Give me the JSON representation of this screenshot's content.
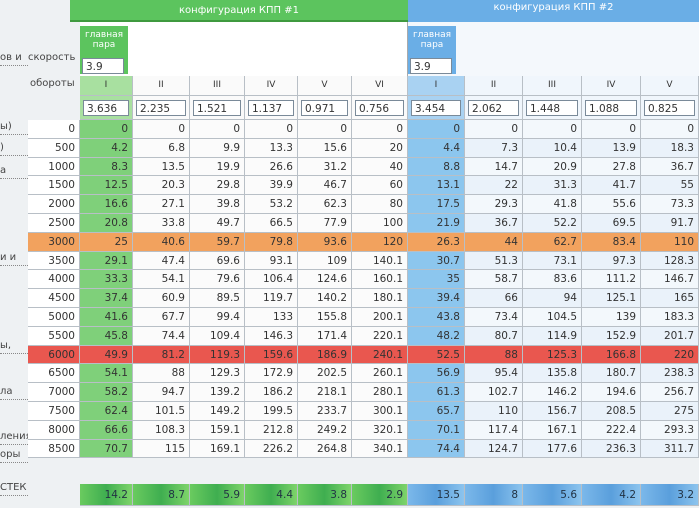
{
  "speed_label": "скорость",
  "rpm_label": "обороты",
  "left_labels": [
    "ов и",
    "ы)",
    ")",
    "а",
    "и и",
    "ы,",
    "ла",
    "ления",
    "оры",
    "СТЕК"
  ],
  "kpp1": {
    "title": "конфигурация КПП #1",
    "main_pair_label": "главная пара",
    "main_pair": 3.9,
    "gears": [
      "I",
      "II",
      "III",
      "IV",
      "V",
      "VI"
    ],
    "ratios": [
      3.636,
      2.235,
      1.521,
      1.137,
      0.971,
      0.756
    ]
  },
  "kpp2": {
    "title": "конфигурация КПП #2",
    "main_pair_label": "главная пара",
    "main_pair": 3.9,
    "gears": [
      "I",
      "II",
      "III",
      "IV",
      "V"
    ],
    "ratios": [
      3.454,
      2.062,
      1.448,
      1.088,
      0.825
    ]
  },
  "rows": [
    {
      "rpm": 0,
      "kpp1": [
        0,
        0,
        0,
        0,
        0,
        0
      ],
      "kpp2": [
        0,
        0,
        0,
        0,
        0
      ]
    },
    {
      "rpm": 500,
      "kpp1": [
        4.2,
        6.8,
        9.9,
        13.3,
        15.6,
        20
      ],
      "kpp2": [
        4.4,
        7.3,
        10.4,
        13.9,
        18.3
      ]
    },
    {
      "rpm": 1000,
      "kpp1": [
        8.3,
        13.5,
        19.9,
        26.6,
        31.2,
        40
      ],
      "kpp2": [
        8.8,
        14.7,
        20.9,
        27.8,
        36.7
      ]
    },
    {
      "rpm": 1500,
      "kpp1": [
        12.5,
        20.3,
        29.8,
        39.9,
        46.7,
        60
      ],
      "kpp2": [
        13.1,
        22,
        31.3,
        41.7,
        55
      ]
    },
    {
      "rpm": 2000,
      "kpp1": [
        16.6,
        27.1,
        39.8,
        53.2,
        62.3,
        80
      ],
      "kpp2": [
        17.5,
        29.3,
        41.8,
        55.6,
        73.3
      ]
    },
    {
      "rpm": 2500,
      "kpp1": [
        20.8,
        33.8,
        49.7,
        66.5,
        77.9,
        100
      ],
      "kpp2": [
        21.9,
        36.7,
        52.2,
        69.5,
        91.7
      ]
    },
    {
      "rpm": 3000,
      "color": "#f2a25e",
      "kpp1": [
        25,
        40.6,
        59.7,
        79.8,
        93.6,
        120
      ],
      "kpp2": [
        26.3,
        44,
        62.7,
        83.4,
        110
      ]
    },
    {
      "rpm": 3500,
      "kpp1": [
        29.1,
        47.4,
        69.6,
        93.1,
        109,
        140.1
      ],
      "kpp2": [
        30.7,
        51.3,
        73.1,
        97.3,
        128.3
      ]
    },
    {
      "rpm": 4000,
      "kpp1": [
        33.3,
        54.1,
        79.6,
        106.4,
        124.6,
        160.1
      ],
      "kpp2": [
        35,
        58.7,
        83.6,
        111.2,
        146.7
      ]
    },
    {
      "rpm": 4500,
      "kpp1": [
        37.4,
        60.9,
        89.5,
        119.7,
        140.2,
        180.1
      ],
      "kpp2": [
        39.4,
        66,
        94,
        125.1,
        165
      ]
    },
    {
      "rpm": 5000,
      "kpp1": [
        41.6,
        67.7,
        99.4,
        133,
        155.8,
        200.1
      ],
      "kpp2": [
        43.8,
        73.4,
        104.5,
        139,
        183.3
      ]
    },
    {
      "rpm": 5500,
      "kpp1": [
        45.8,
        74.4,
        109.4,
        146.3,
        171.4,
        220.1
      ],
      "kpp2": [
        48.2,
        80.7,
        114.9,
        152.9,
        201.7
      ]
    },
    {
      "rpm": 6000,
      "color": "#e9574f",
      "kpp1": [
        49.9,
        81.2,
        119.3,
        159.6,
        186.9,
        240.1
      ],
      "kpp2": [
        52.5,
        88,
        125.3,
        166.8,
        220
      ]
    },
    {
      "rpm": 6500,
      "kpp1": [
        54.1,
        88,
        129.3,
        172.9,
        202.5,
        260.1
      ],
      "kpp2": [
        56.9,
        95.4,
        135.8,
        180.7,
        238.3
      ]
    },
    {
      "rpm": 7000,
      "kpp1": [
        58.2,
        94.7,
        139.2,
        186.2,
        218.1,
        280.1
      ],
      "kpp2": [
        61.3,
        102.7,
        146.2,
        194.6,
        256.7
      ]
    },
    {
      "rpm": 7500,
      "kpp1": [
        62.4,
        101.5,
        149.2,
        199.5,
        233.7,
        300.1
      ],
      "kpp2": [
        65.7,
        110,
        156.7,
        208.5,
        275
      ]
    },
    {
      "rpm": 8000,
      "kpp1": [
        66.6,
        108.3,
        159.1,
        212.8,
        249.2,
        320.1
      ],
      "kpp2": [
        70.1,
        117.4,
        167.1,
        222.4,
        293.3
      ]
    },
    {
      "rpm": 8500,
      "kpp1": [
        70.7,
        115,
        169.1,
        226.2,
        264.8,
        340.1
      ],
      "kpp2": [
        74.4,
        124.7,
        177.6,
        236.3,
        311.7
      ]
    }
  ],
  "footer": {
    "kpp1": [
      14.2,
      8.7,
      5.9,
      4.4,
      3.8,
      2.9
    ],
    "kpp2": [
      13.5,
      8,
      5.6,
      4.2,
      3.2
    ]
  }
}
